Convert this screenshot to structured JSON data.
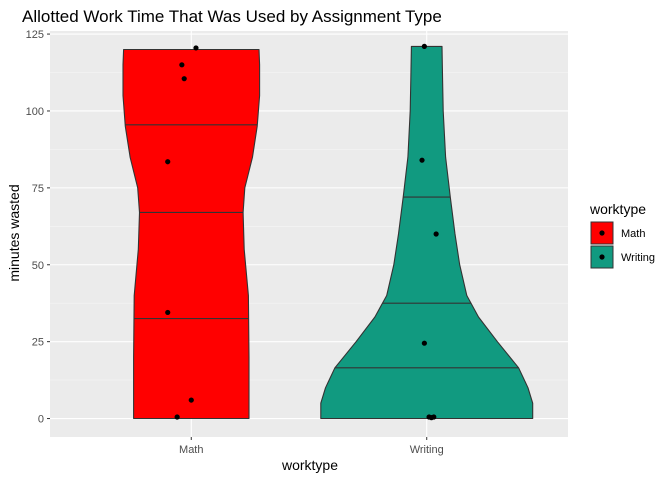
{
  "chart_data": {
    "type": "violin",
    "title": "Allotted Work Time That Was Used by Assignment Type",
    "xlabel": "worktype",
    "ylabel": "minutes wasted",
    "ylim": [
      -6,
      126
    ],
    "yticks": [
      0,
      25,
      50,
      75,
      100,
      125
    ],
    "categories": [
      "Math",
      "Writing"
    ],
    "grid": true,
    "legend": {
      "title": "worktype",
      "position": "right",
      "items": [
        "Math",
        "Writing"
      ]
    },
    "series": [
      {
        "name": "Math",
        "color": "#ff0000",
        "quantiles": [
          32.5,
          67,
          95.5
        ],
        "range": [
          0,
          120
        ],
        "points": [
          {
            "x": 0.02,
            "y": 120.5
          },
          {
            "x": -0.04,
            "y": 115
          },
          {
            "x": -0.03,
            "y": 110.5
          },
          {
            "x": -0.1,
            "y": 83.5
          },
          {
            "x": -0.1,
            "y": 34.5
          },
          {
            "x": 0.0,
            "y": 6
          },
          {
            "x": -0.06,
            "y": 0.5
          }
        ],
        "density": [
          {
            "y": 0,
            "w": 0.49
          },
          {
            "y": 20,
            "w": 0.49
          },
          {
            "y": 40,
            "w": 0.485
          },
          {
            "y": 55,
            "w": 0.45
          },
          {
            "y": 67,
            "w": 0.44
          },
          {
            "y": 75,
            "w": 0.455
          },
          {
            "y": 85,
            "w": 0.52
          },
          {
            "y": 95,
            "w": 0.56
          },
          {
            "y": 105,
            "w": 0.58
          },
          {
            "y": 115,
            "w": 0.58
          },
          {
            "y": 120,
            "w": 0.575
          }
        ]
      },
      {
        "name": "Writing",
        "color": "#119a80",
        "quantiles": [
          16.5,
          37.5,
          72
        ],
        "range": [
          0,
          121
        ],
        "points": [
          {
            "x": -0.01,
            "y": 121
          },
          {
            "x": -0.02,
            "y": 84
          },
          {
            "x": 0.04,
            "y": 60
          },
          {
            "x": -0.01,
            "y": 24.5
          },
          {
            "x": 0.01,
            "y": 0.5
          },
          {
            "x": 0.03,
            "y": 0.5
          },
          {
            "x": 0.02,
            "y": 0.3
          }
        ],
        "density": [
          {
            "y": 0,
            "w": 0.9
          },
          {
            "y": 5,
            "w": 0.9
          },
          {
            "y": 10,
            "w": 0.86
          },
          {
            "y": 16.5,
            "w": 0.78
          },
          {
            "y": 25,
            "w": 0.6
          },
          {
            "y": 33,
            "w": 0.44
          },
          {
            "y": 40,
            "w": 0.34
          },
          {
            "y": 50,
            "w": 0.28
          },
          {
            "y": 60,
            "w": 0.24
          },
          {
            "y": 72,
            "w": 0.2
          },
          {
            "y": 85,
            "w": 0.16
          },
          {
            "y": 100,
            "w": 0.14
          },
          {
            "y": 110,
            "w": 0.135
          },
          {
            "y": 121,
            "w": 0.13
          }
        ]
      }
    ]
  }
}
